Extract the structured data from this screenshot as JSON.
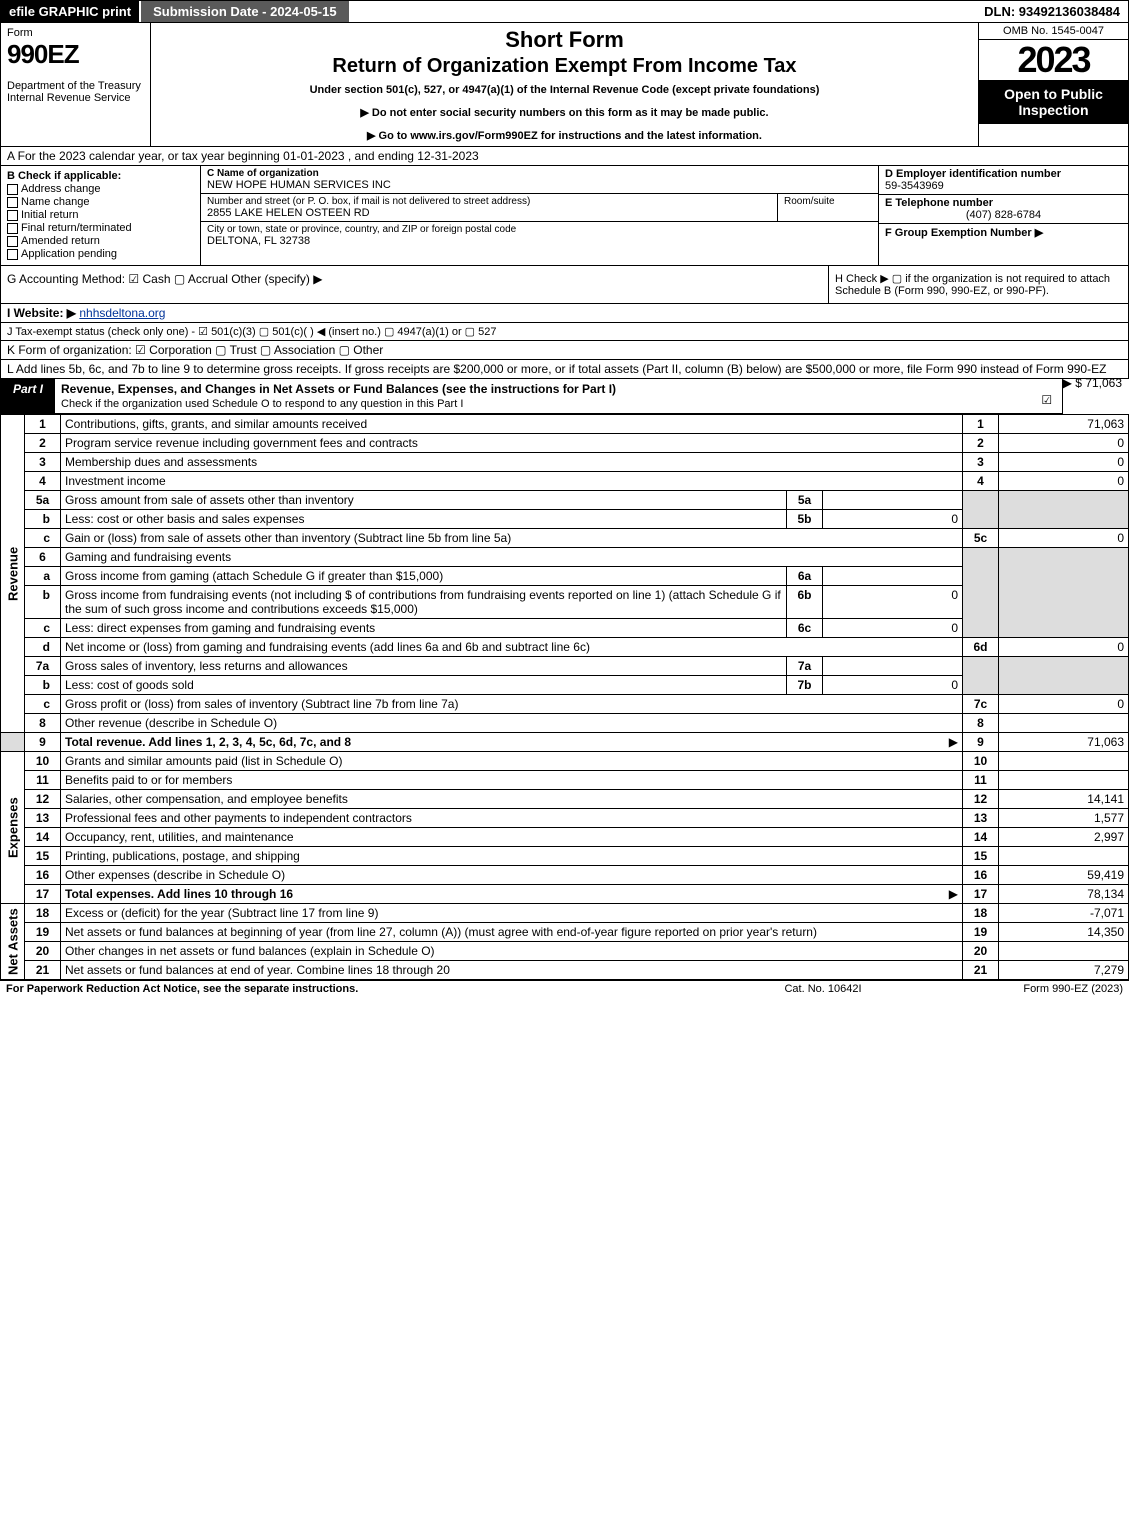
{
  "topbar": {
    "efile": "efile GRAPHIC print",
    "subdate": "Submission Date - 2024-05-15",
    "dln": "DLN: 93492136038484"
  },
  "header": {
    "form_label": "Form",
    "form_number": "990EZ",
    "dept": "Department of the Treasury\nInternal Revenue Service",
    "short_form": "Short Form",
    "return_title": "Return of Organization Exempt From Income Tax",
    "under": "Under section 501(c), 527, or 4947(a)(1) of the Internal Revenue Code (except private foundations)",
    "no_ssn": "▶ Do not enter social security numbers on this form as it may be made public.",
    "goto": "▶ Go to www.irs.gov/Form990EZ for instructions and the latest information.",
    "omb": "OMB No. 1545-0047",
    "year": "2023",
    "open": "Open to Public Inspection"
  },
  "A": {
    "text": "A  For the 2023 calendar year, or tax year beginning 01-01-2023 , and ending 12-31-2023"
  },
  "B": {
    "label": "B  Check if applicable:",
    "items": [
      "Address change",
      "Name change",
      "Initial return",
      "Final return/terminated",
      "Amended return",
      "Application pending"
    ]
  },
  "C": {
    "name_label": "C Name of organization",
    "name": "NEW HOPE HUMAN SERVICES INC",
    "street_label": "Number and street (or P. O. box, if mail is not delivered to street address)",
    "street": "2855 LAKE HELEN OSTEEN RD",
    "room_label": "Room/suite",
    "city_label": "City or town, state or province, country, and ZIP or foreign postal code",
    "city": "DELTONA, FL  32738"
  },
  "D": {
    "ein_label": "D Employer identification number",
    "ein": "59-3543969",
    "tel_label": "E Telephone number",
    "tel": "(407) 828-6784",
    "grp_label": "F Group Exemption Number   ▶"
  },
  "G": {
    "text": "G Accounting Method:   ☑ Cash  ▢ Accrual   Other (specify) ▶"
  },
  "H": {
    "text": "H  Check ▶  ▢ if the organization is not required to attach Schedule B (Form 990, 990-EZ, or 990-PF)."
  },
  "I": {
    "label": "I Website: ▶",
    "site": "nhhsdeltona.org"
  },
  "J": {
    "text": "J Tax-exempt status (check only one) - ☑ 501(c)(3) ▢ 501(c)(  ) ◀ (insert no.) ▢ 4947(a)(1) or ▢ 527"
  },
  "K": {
    "text": "K Form of organization:   ☑ Corporation  ▢ Trust  ▢ Association  ▢ Other"
  },
  "L": {
    "text": "L Add lines 5b, 6c, and 7b to line 9 to determine gross receipts. If gross receipts are $200,000 or more, or if total assets (Part II, column (B) below) are $500,000 or more, file Form 990 instead of Form 990-EZ",
    "amount": "▶ $ 71,063"
  },
  "partI": {
    "tag": "Part I",
    "title": "Revenue, Expenses, and Changes in Net Assets or Fund Balances (see the instructions for Part I)",
    "sub": "Check if the organization used Schedule O to respond to any question in this Part I",
    "checked": "☑"
  },
  "revenue_label": "Revenue",
  "expenses_label": "Expenses",
  "netassets_label": "Net Assets",
  "lines": {
    "l1": {
      "n": "1",
      "d": "Contributions, gifts, grants, and similar amounts received",
      "r": "1",
      "a": "71,063"
    },
    "l2": {
      "n": "2",
      "d": "Program service revenue including government fees and contracts",
      "r": "2",
      "a": "0"
    },
    "l3": {
      "n": "3",
      "d": "Membership dues and assessments",
      "r": "3",
      "a": "0"
    },
    "l4": {
      "n": "4",
      "d": "Investment income",
      "r": "4",
      "a": "0"
    },
    "l5a": {
      "n": "5a",
      "d": "Gross amount from sale of assets other than inventory",
      "sc": "5a",
      "sv": ""
    },
    "l5b": {
      "n": "b",
      "d": "Less: cost or other basis and sales expenses",
      "sc": "5b",
      "sv": "0"
    },
    "l5c": {
      "n": "c",
      "d": "Gain or (loss) from sale of assets other than inventory (Subtract line 5b from line 5a)",
      "r": "5c",
      "a": "0"
    },
    "l6": {
      "n": "6",
      "d": "Gaming and fundraising events"
    },
    "l6a": {
      "n": "a",
      "d": "Gross income from gaming (attach Schedule G if greater than $15,000)",
      "sc": "6a",
      "sv": ""
    },
    "l6b": {
      "n": "b",
      "d": "Gross income from fundraising events (not including $            of contributions from fundraising events reported on line 1) (attach Schedule G if the sum of such gross income and contributions exceeds $15,000)",
      "sc": "6b",
      "sv": "0"
    },
    "l6c": {
      "n": "c",
      "d": "Less: direct expenses from gaming and fundraising events",
      "sc": "6c",
      "sv": "0"
    },
    "l6d": {
      "n": "d",
      "d": "Net income or (loss) from gaming and fundraising events (add lines 6a and 6b and subtract line 6c)",
      "r": "6d",
      "a": "0"
    },
    "l7a": {
      "n": "7a",
      "d": "Gross sales of inventory, less returns and allowances",
      "sc": "7a",
      "sv": ""
    },
    "l7b": {
      "n": "b",
      "d": "Less: cost of goods sold",
      "sc": "7b",
      "sv": "0"
    },
    "l7c": {
      "n": "c",
      "d": "Gross profit or (loss) from sales of inventory (Subtract line 7b from line 7a)",
      "r": "7c",
      "a": "0"
    },
    "l8": {
      "n": "8",
      "d": "Other revenue (describe in Schedule O)",
      "r": "8",
      "a": ""
    },
    "l9": {
      "n": "9",
      "d": "Total revenue. Add lines 1, 2, 3, 4, 5c, 6d, 7c, and 8",
      "r": "9",
      "a": "71,063",
      "arrow": "▶"
    },
    "l10": {
      "n": "10",
      "d": "Grants and similar amounts paid (list in Schedule O)",
      "r": "10",
      "a": ""
    },
    "l11": {
      "n": "11",
      "d": "Benefits paid to or for members",
      "r": "11",
      "a": ""
    },
    "l12": {
      "n": "12",
      "d": "Salaries, other compensation, and employee benefits",
      "r": "12",
      "a": "14,141"
    },
    "l13": {
      "n": "13",
      "d": "Professional fees and other payments to independent contractors",
      "r": "13",
      "a": "1,577"
    },
    "l14": {
      "n": "14",
      "d": "Occupancy, rent, utilities, and maintenance",
      "r": "14",
      "a": "2,997"
    },
    "l15": {
      "n": "15",
      "d": "Printing, publications, postage, and shipping",
      "r": "15",
      "a": ""
    },
    "l16": {
      "n": "16",
      "d": "Other expenses (describe in Schedule O)",
      "r": "16",
      "a": "59,419"
    },
    "l17": {
      "n": "17",
      "d": "Total expenses. Add lines 10 through 16",
      "r": "17",
      "a": "78,134",
      "arrow": "▶"
    },
    "l18": {
      "n": "18",
      "d": "Excess or (deficit) for the year (Subtract line 17 from line 9)",
      "r": "18",
      "a": "-7,071"
    },
    "l19": {
      "n": "19",
      "d": "Net assets or fund balances at beginning of year (from line 27, column (A)) (must agree with end-of-year figure reported on prior year's return)",
      "r": "19",
      "a": "14,350"
    },
    "l20": {
      "n": "20",
      "d": "Other changes in net assets or fund balances (explain in Schedule O)",
      "r": "20",
      "a": ""
    },
    "l21": {
      "n": "21",
      "d": "Net assets or fund balances at end of year. Combine lines 18 through 20",
      "r": "21",
      "a": "7,279"
    }
  },
  "footer": {
    "l": "For Paperwork Reduction Act Notice, see the separate instructions.",
    "c": "Cat. No. 10642I",
    "r": "Form 990-EZ (2023)"
  }
}
